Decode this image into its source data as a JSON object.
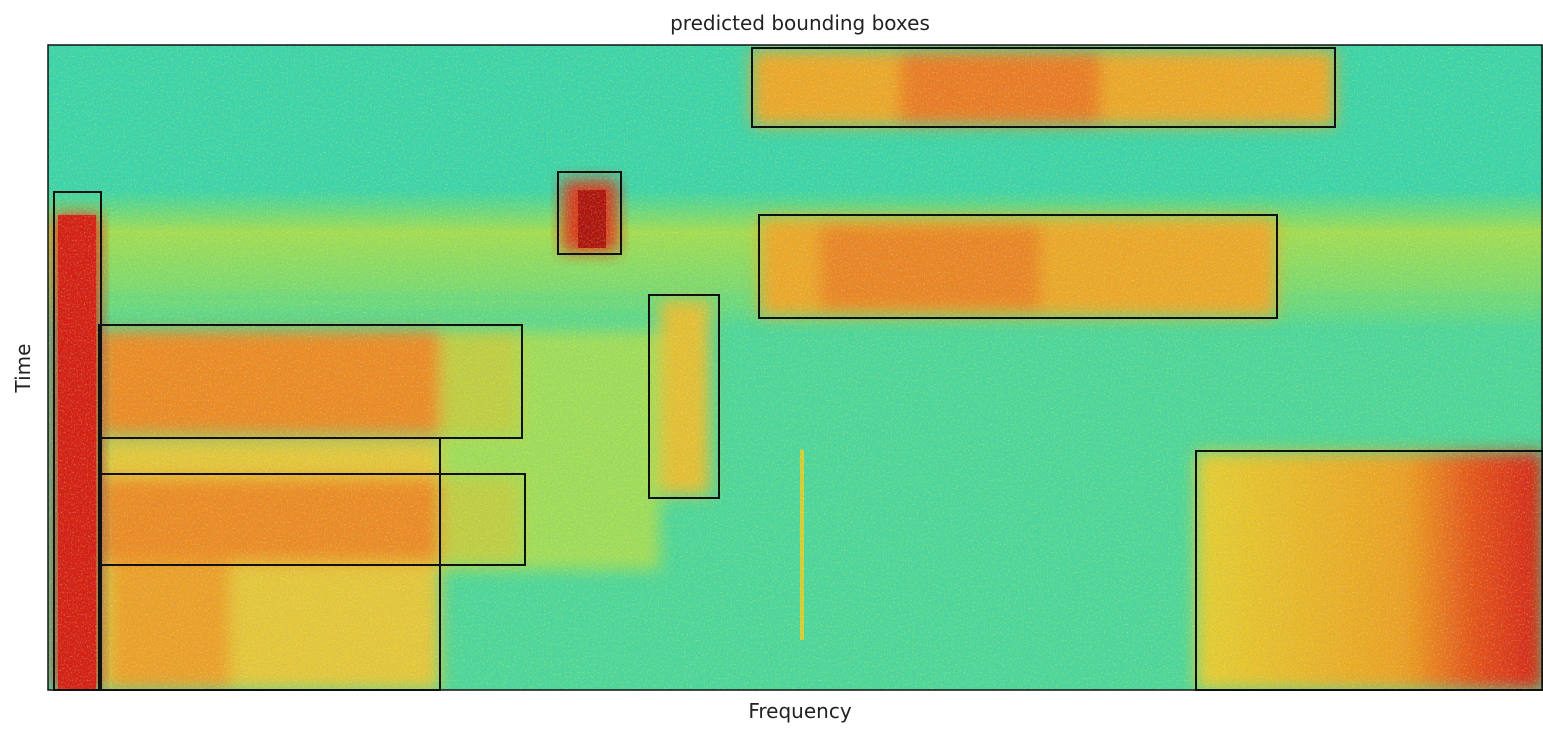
{
  "title": "predicted bounding boxes",
  "x_label": "Frequency",
  "y_label": "Time"
}
